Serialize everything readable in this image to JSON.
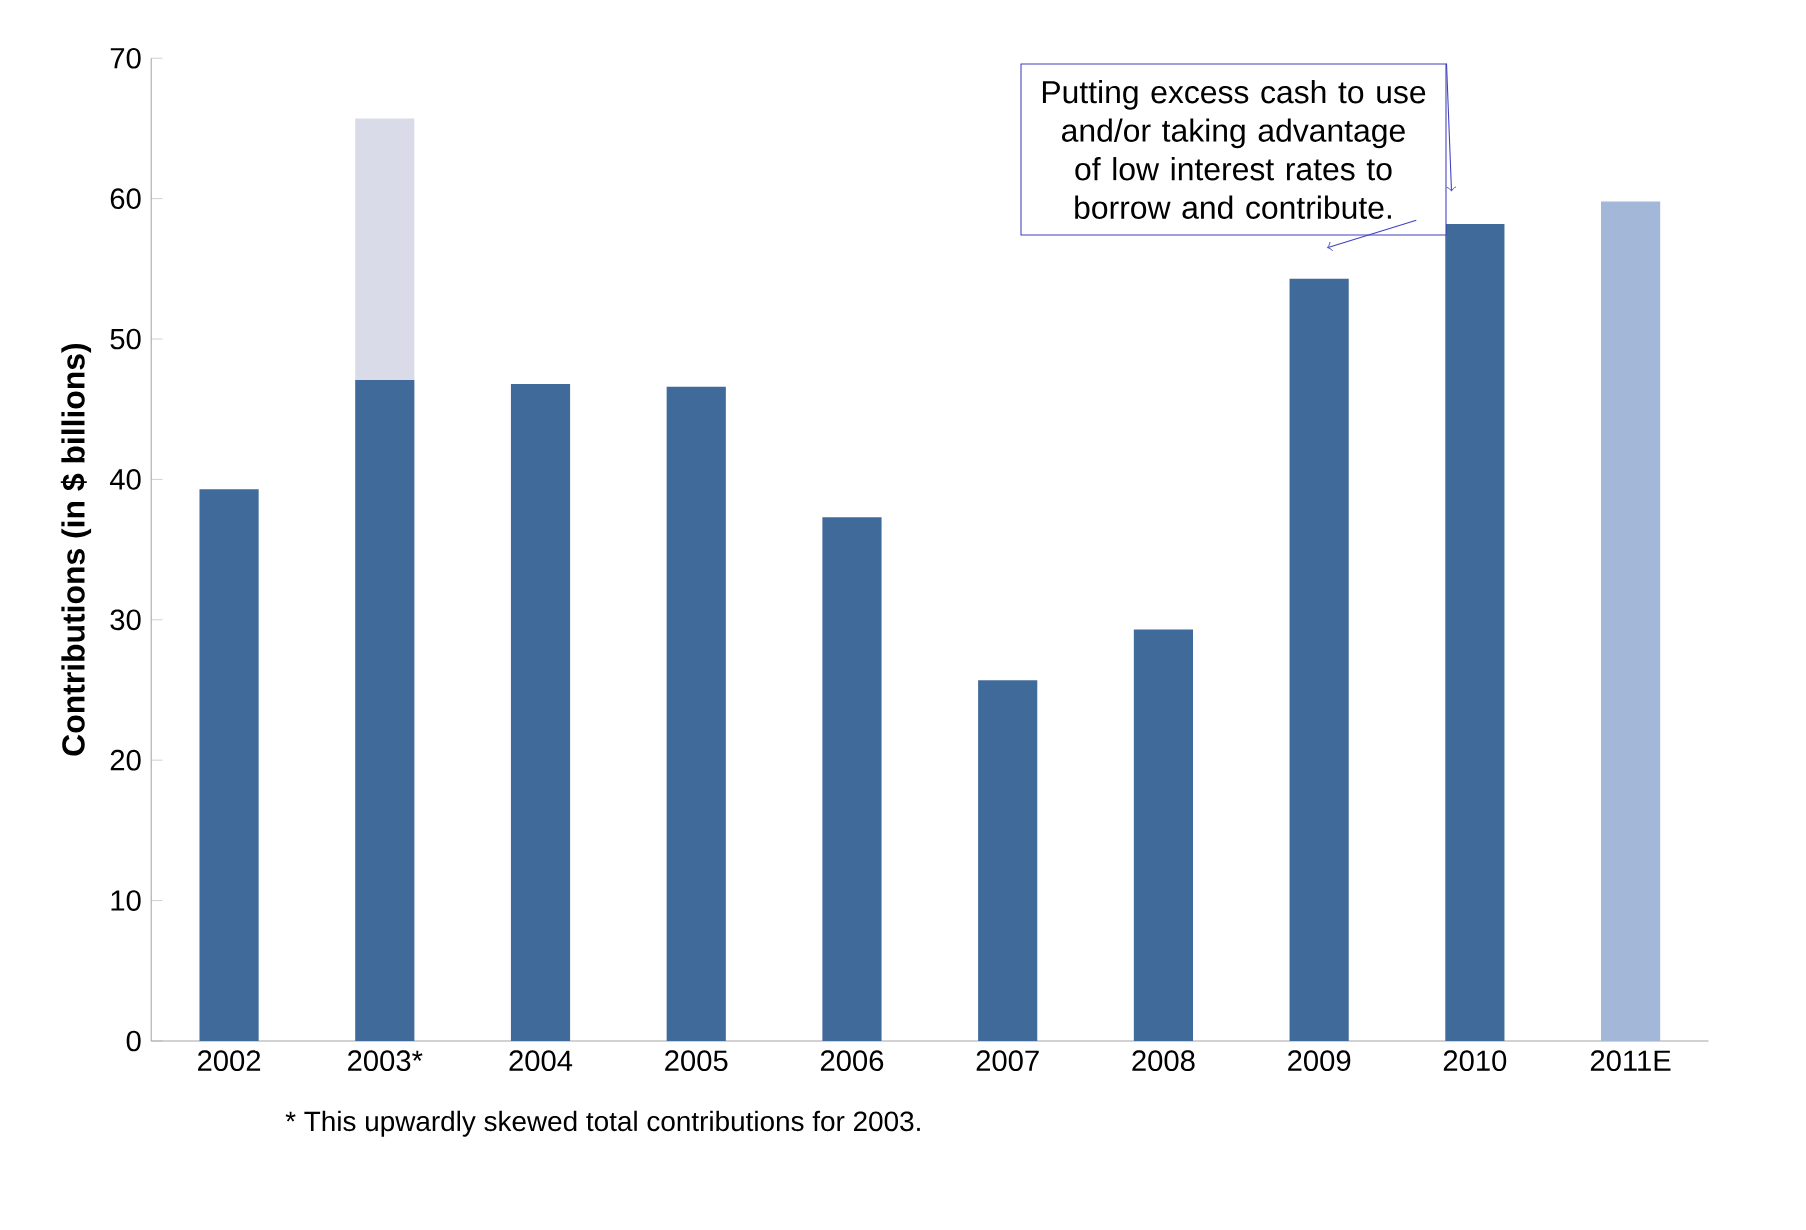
{
  "chart_data": {
    "type": "bar",
    "stacked": true,
    "ylabel": "Contributions (in $ billions)",
    "categories": [
      "2002",
      "2003*",
      "2004",
      "2005",
      "2006",
      "2007",
      "2008",
      "2009",
      "2010",
      "2011E"
    ],
    "series": [
      {
        "colors": [
          "#3f6a9a",
          "#3f6a9a",
          "#3f6a9a",
          "#3f6a9a",
          "#3f6a9a",
          "#3f6a9a",
          "#3f6a9a",
          "#3f6a9a",
          "#3f6a9a",
          "#a3b8d8"
        ],
        "values": [
          39.3,
          47.1,
          46.8,
          46.6,
          37.3,
          25.7,
          29.3,
          54.3,
          58.2,
          59.8
        ]
      },
      {
        "color": "#d9dbe8",
        "values": [
          null,
          18.6,
          null,
          null,
          null,
          null,
          null,
          null,
          null,
          null
        ]
      }
    ],
    "ylim": [
      0,
      70
    ],
    "yticks": [
      0,
      10,
      20,
      30,
      40,
      50,
      60,
      70
    ],
    "grid": false,
    "legend": false,
    "annotations": [
      "Putting excess cash to use and/or taking advantage of low interest rates to borrow and contribute.",
      "* This upwardly skewed total contributions for 2003."
    ]
  }
}
